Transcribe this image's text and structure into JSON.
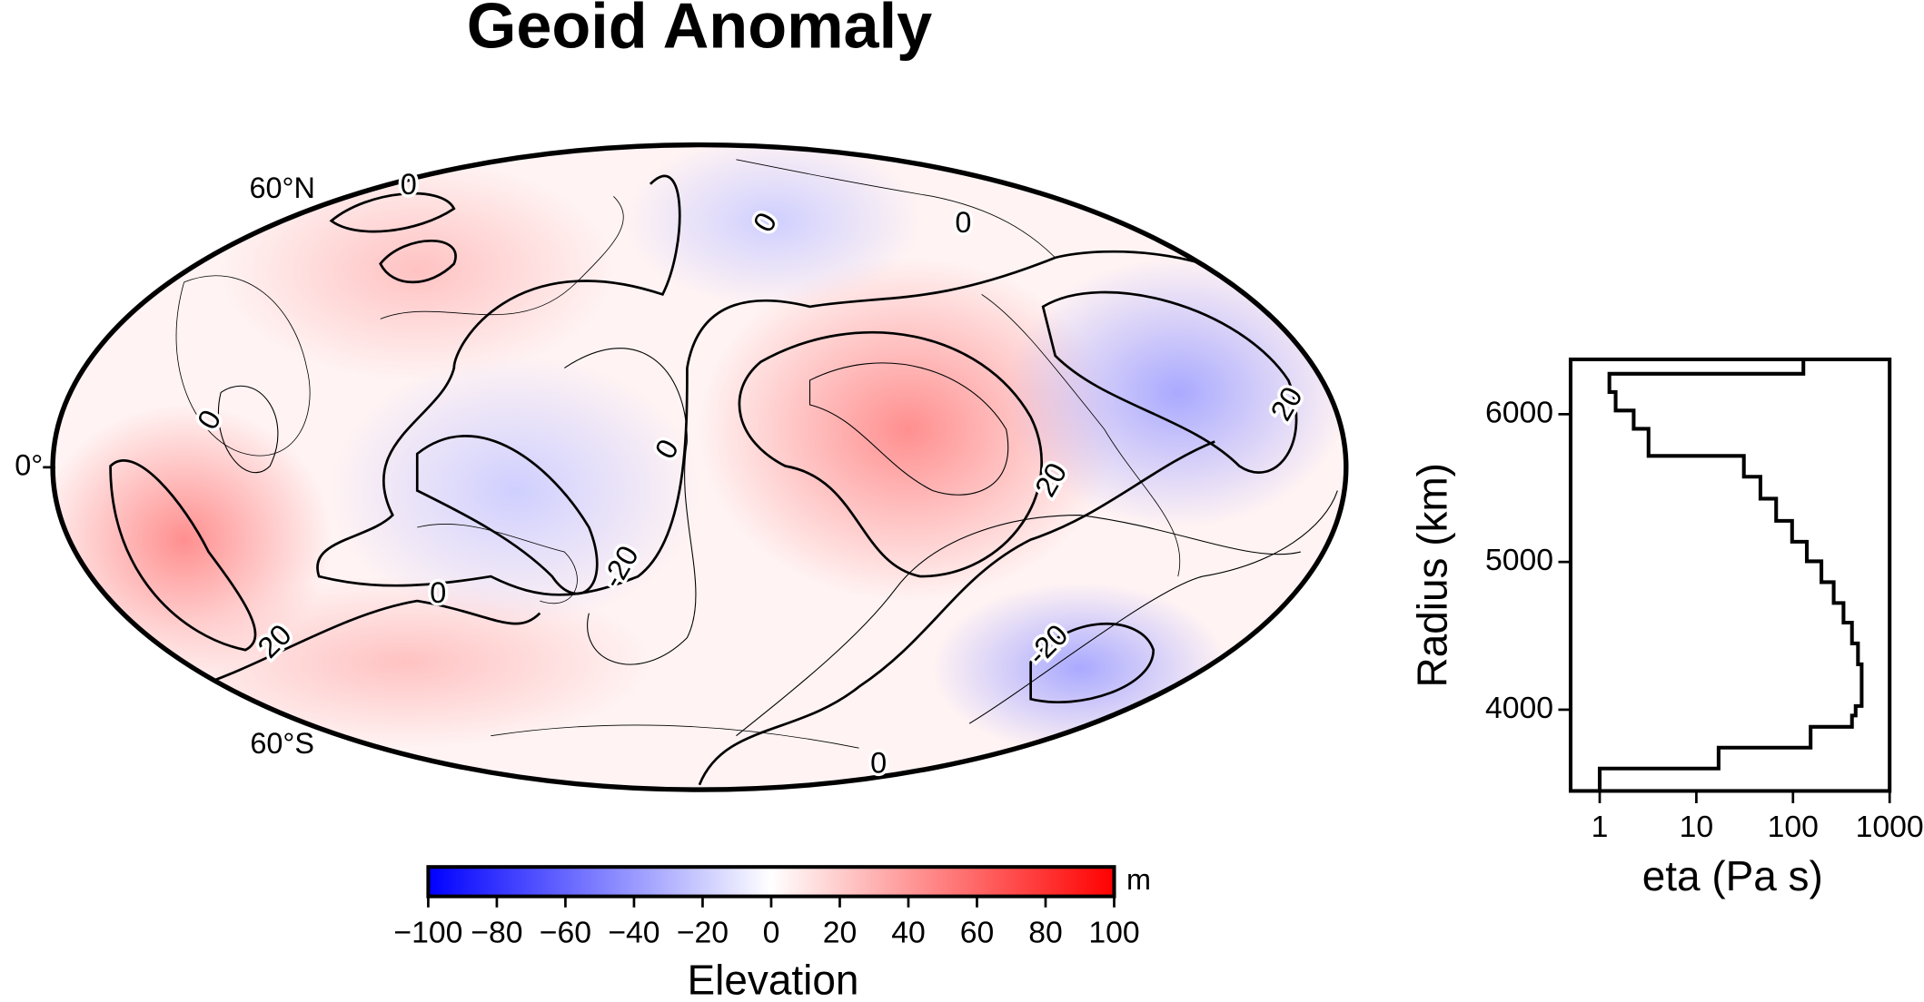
{
  "chart_data": [
    {
      "type": "map",
      "title": "Geoid Anomaly",
      "lat_labels": [
        "60°N",
        "0°",
        "60°S"
      ],
      "contour_labels": [
        0,
        0,
        0,
        0,
        0,
        0,
        0,
        20,
        20,
        20,
        -20,
        -20
      ],
      "colorbar": {
        "clim": [
          -100,
          100
        ],
        "colors": [
          "#0000ff",
          "#ffffff",
          "#ff0000"
        ],
        "unit": "m",
        "label": "Elevation",
        "ticks": [
          {
            "value": -100,
            "label": "−100"
          },
          {
            "value": -80,
            "label": "−80"
          },
          {
            "value": -60,
            "label": "−60"
          },
          {
            "value": -40,
            "label": "−40"
          },
          {
            "value": -20,
            "label": "−20"
          },
          0,
          20,
          40,
          60,
          80,
          100
        ]
      }
    },
    {
      "type": "line",
      "xlabel": "eta (Pa s)",
      "ylabel": "Radius (km)",
      "xlog": true,
      "xlim": [
        0.5,
        1000
      ],
      "ylim": [
        3450,
        6371
      ],
      "xticks": [
        1,
        10,
        100,
        1000
      ],
      "yticks": [
        4000,
        5000,
        6000
      ],
      "color": "#000000",
      "x": [
        128,
        128,
        1.26,
        1.26,
        1.46,
        1.46,
        2.25,
        2.25,
        3.2,
        3.2,
        31,
        31,
        46,
        46,
        67,
        67,
        98,
        98,
        139,
        139,
        197,
        197,
        264,
        264,
        333,
        333,
        408,
        408,
        471,
        471,
        514,
        514,
        445,
        445,
        408,
        408,
        152,
        152,
        17,
        17,
        1,
        1
      ],
      "values": [
        6371,
        6274,
        6274,
        6150,
        6150,
        6025,
        6025,
        5901,
        5901,
        5718,
        5718,
        5577,
        5577,
        5428,
        5428,
        5278,
        5278,
        5137,
        5137,
        5004,
        5004,
        4863,
        4863,
        4722,
        4722,
        4589,
        4589,
        4448,
        4448,
        4307,
        4307,
        4025,
        4025,
        3960,
        3960,
        3884,
        3884,
        3743,
        3743,
        3602,
        3602,
        3450
      ]
    }
  ]
}
